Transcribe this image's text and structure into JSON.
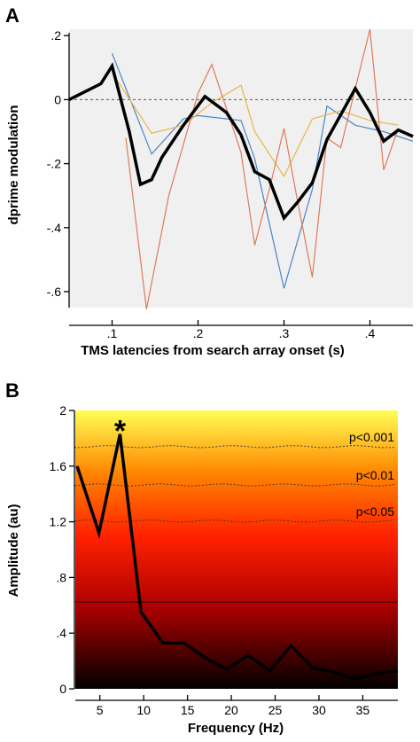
{
  "chart_data": [
    {
      "type": "line",
      "panel": "A",
      "xlabel": "TMS latencies from search array onset (s)",
      "ylabel": "dprime modulation",
      "xlim": [
        0.05,
        0.45
      ],
      "ylim": [
        -0.65,
        0.22
      ],
      "xticks": [
        0.1,
        0.2,
        0.3,
        0.4
      ],
      "xtick_labels": [
        ".1",
        ".2",
        ".3",
        ".4"
      ],
      "yticks": [
        0.2,
        0,
        -0.2,
        -0.4,
        -0.6
      ],
      "ytick_labels": [
        ".2",
        "0",
        "-.2",
        "-.4",
        "-.6"
      ],
      "background": "#f0f0f0",
      "zero_line": "dashed",
      "series": [
        {
          "color": "#000000",
          "width": "thick",
          "x": [
            0.05,
            0.087,
            0.1,
            0.12,
            0.133,
            0.146,
            0.158,
            0.183,
            0.208,
            0.233,
            0.25,
            0.266,
            0.283,
            0.3,
            0.316,
            0.333,
            0.35,
            0.383,
            0.4,
            0.416,
            0.433,
            0.45
          ],
          "y": [
            0.0,
            0.05,
            0.105,
            -0.1,
            -0.265,
            -0.25,
            -0.18,
            -0.08,
            0.01,
            -0.04,
            -0.11,
            -0.225,
            -0.25,
            -0.37,
            -0.32,
            -0.26,
            -0.125,
            0.035,
            -0.04,
            -0.13,
            -0.095,
            -0.115
          ]
        },
        {
          "color": "#4a86c5",
          "width": "thin",
          "x": [
            0.1,
            0.146,
            0.183,
            0.2,
            0.25,
            0.266,
            0.3,
            0.333,
            0.35,
            0.383,
            0.416,
            0.45
          ],
          "y": [
            0.145,
            -0.17,
            -0.06,
            -0.05,
            -0.065,
            -0.185,
            -0.59,
            -0.28,
            -0.02,
            -0.08,
            -0.1,
            -0.13
          ]
        },
        {
          "color": "#e8b64a",
          "width": "thin",
          "x": [
            0.1,
            0.146,
            0.183,
            0.216,
            0.25,
            0.266,
            0.3,
            0.333,
            0.366,
            0.4,
            0.433
          ],
          "y": [
            0.085,
            -0.105,
            -0.08,
            -0.01,
            0.045,
            -0.1,
            -0.24,
            -0.06,
            -0.035,
            -0.065,
            -0.08
          ]
        },
        {
          "color": "#e07a5a",
          "width": "thin",
          "x": [
            0.116,
            0.14,
            0.166,
            0.2,
            0.216,
            0.25,
            0.266,
            0.283,
            0.3,
            0.316,
            0.333,
            0.35,
            0.366,
            0.4,
            0.416,
            0.433
          ],
          "y": [
            -0.12,
            -0.655,
            -0.3,
            0.02,
            0.11,
            -0.165,
            -0.455,
            -0.28,
            -0.09,
            -0.32,
            -0.555,
            -0.12,
            -0.15,
            0.22,
            -0.22,
            -0.09
          ]
        }
      ]
    },
    {
      "type": "line",
      "panel": "B",
      "xlabel": "Frequency (Hz)",
      "ylabel": "Amplitude (au)",
      "xlim": [
        2.2,
        39
      ],
      "ylim": [
        0,
        2
      ],
      "xticks": [
        5,
        10,
        15,
        20,
        25,
        30,
        35
      ],
      "xtick_labels": [
        "5",
        "10",
        "15",
        "20",
        "25",
        "30",
        "35"
      ],
      "yticks": [
        0,
        0.4,
        0.8,
        1.2,
        1.6,
        2.0
      ],
      "ytick_labels": [
        "0",
        ".4",
        ".8",
        "1.2",
        "1.6",
        "2"
      ],
      "background_gradient": [
        "#000000",
        "#b00000",
        "#ff2200",
        "#ff8800",
        "#ffff55"
      ],
      "series": [
        {
          "color": "#000000",
          "width": "thick",
          "x": [
            2.4,
            4.9,
            7.3,
            9.7,
            12.2,
            14.6,
            17.1,
            19.5,
            21.9,
            24.4,
            26.8,
            29.3,
            31.7,
            34.1,
            36.6,
            39.0
          ],
          "y": [
            1.6,
            1.12,
            1.83,
            0.55,
            0.33,
            0.33,
            0.22,
            0.14,
            0.24,
            0.13,
            0.31,
            0.15,
            0.12,
            0.07,
            0.11,
            0.13
          ]
        }
      ],
      "thresholds": [
        {
          "label": "p<0.001",
          "y": 1.74,
          "style": "dotted"
        },
        {
          "label": "p<0.01",
          "y": 1.465,
          "style": "dotted"
        },
        {
          "label": "p<0.05",
          "y": 1.205,
          "style": "dotted"
        },
        {
          "label": "",
          "y": 0.625,
          "style": "solid"
        }
      ],
      "annotations": [
        {
          "text": "*",
          "x": 7.3,
          "y": 1.83
        }
      ]
    }
  ]
}
